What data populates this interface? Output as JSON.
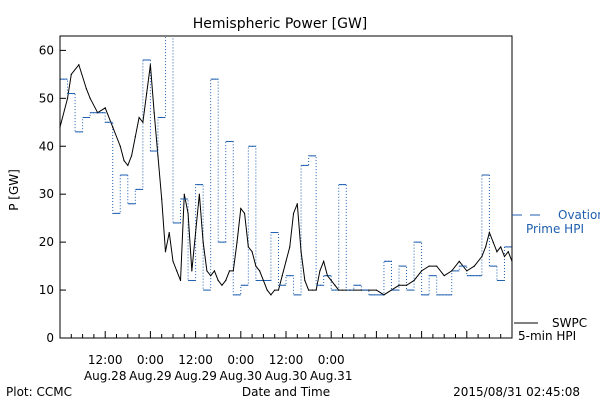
{
  "chart_data": {
    "type": "line",
    "title": "Hemispheric Power [GW]",
    "ylabel": "P [GW]",
    "xlabel": "Date and Time",
    "ylim": [
      0,
      63
    ],
    "yticks": [
      0,
      10,
      20,
      30,
      40,
      50,
      60
    ],
    "xlim_hours_from_start": [
      0,
      120
    ],
    "xticks": [
      {
        "time": "12:00",
        "date": "Aug.28"
      },
      {
        "time": "0:00",
        "date": "Aug.29"
      },
      {
        "time": "12:00",
        "date": "Aug.29"
      },
      {
        "time": "0:00",
        "date": "Aug.30"
      },
      {
        "time": "12:00",
        "date": "Aug.30"
      },
      {
        "time": "0:00",
        "date": "Aug.31"
      }
    ],
    "footer_left": "Plot: CCMC",
    "footer_right": "2015/08/31 02:45:08",
    "legend": {
      "ovation_line1": "Ovation",
      "ovation_line2": "Prime HPI",
      "swpc_line1": "SWPC",
      "swpc_line2": "5-min HPI"
    },
    "colors": {
      "ovation": "#1f5fb0",
      "swpc": "#000000"
    },
    "series": [
      {
        "name": "Ovation Prime HPI",
        "style": "step-dotted",
        "x": [
          0,
          2,
          4,
          6,
          8,
          10,
          12,
          14,
          16,
          18,
          20,
          22,
          24,
          26,
          28,
          30,
          32,
          34,
          36,
          38,
          40,
          42,
          44,
          46,
          48,
          50,
          52,
          54,
          56,
          58,
          60,
          62,
          64,
          66,
          68,
          70,
          72,
          74,
          76,
          78,
          80,
          82,
          84,
          86,
          88,
          90,
          92,
          94,
          96,
          98,
          100,
          102,
          104,
          106,
          108,
          110,
          112,
          114,
          116,
          118,
          120
        ],
        "y": [
          54,
          51,
          43,
          46,
          47,
          47,
          45,
          26,
          34,
          28,
          31,
          58,
          39,
          46,
          63,
          24,
          29,
          12,
          32,
          10,
          54,
          20,
          41,
          9,
          11,
          40,
          12,
          12,
          22,
          11,
          13,
          9,
          36,
          38,
          11,
          13,
          10,
          32,
          10,
          11,
          10,
          9,
          9,
          16,
          10,
          15,
          10,
          20,
          9,
          13,
          9,
          9,
          14,
          15,
          13,
          13,
          34,
          15,
          12,
          19,
          17
        ]
      },
      {
        "name": "SWPC 5-min HPI",
        "style": "solid",
        "x": [
          0,
          2,
          3,
          5,
          7,
          8,
          10,
          12,
          14,
          16,
          17,
          18,
          19,
          20,
          21,
          22,
          23,
          24,
          25,
          26,
          27,
          28,
          29,
          30,
          31,
          32,
          33,
          34,
          35,
          36,
          37,
          38,
          39,
          40,
          41,
          42,
          43,
          44,
          45,
          46,
          47,
          48,
          49,
          50,
          51,
          52,
          53,
          54,
          55,
          56,
          57,
          58,
          59,
          60,
          61,
          62,
          63,
          64,
          65,
          66,
          67,
          68,
          69,
          70,
          71,
          72,
          73,
          74,
          75,
          76,
          77,
          78,
          80,
          82,
          84,
          86,
          88,
          90,
          92,
          94,
          96,
          98,
          100,
          102,
          104,
          106,
          108,
          110,
          112,
          113,
          114,
          115,
          116,
          117,
          118,
          119,
          120
        ],
        "y": [
          44,
          50,
          55,
          57,
          52,
          50,
          47,
          48,
          44,
          40,
          37,
          36,
          38,
          42,
          46,
          45,
          51,
          57,
          47,
          38,
          29,
          18,
          22,
          16,
          14,
          12,
          30,
          26,
          14,
          22,
          30,
          20,
          14,
          13,
          14,
          12,
          11,
          12,
          14,
          14,
          20,
          27,
          26,
          19,
          18,
          15,
          14,
          12,
          10,
          9,
          10,
          10,
          13,
          16,
          19,
          26,
          28,
          18,
          12,
          10,
          10,
          10,
          14,
          16,
          13,
          12,
          11,
          10,
          10,
          10,
          10,
          10,
          10,
          10,
          10,
          9,
          10,
          11,
          11,
          12,
          14,
          15,
          15,
          13,
          14,
          16,
          14,
          15,
          17,
          19,
          22,
          20,
          18,
          19,
          17,
          18,
          16
        ]
      }
    ]
  }
}
